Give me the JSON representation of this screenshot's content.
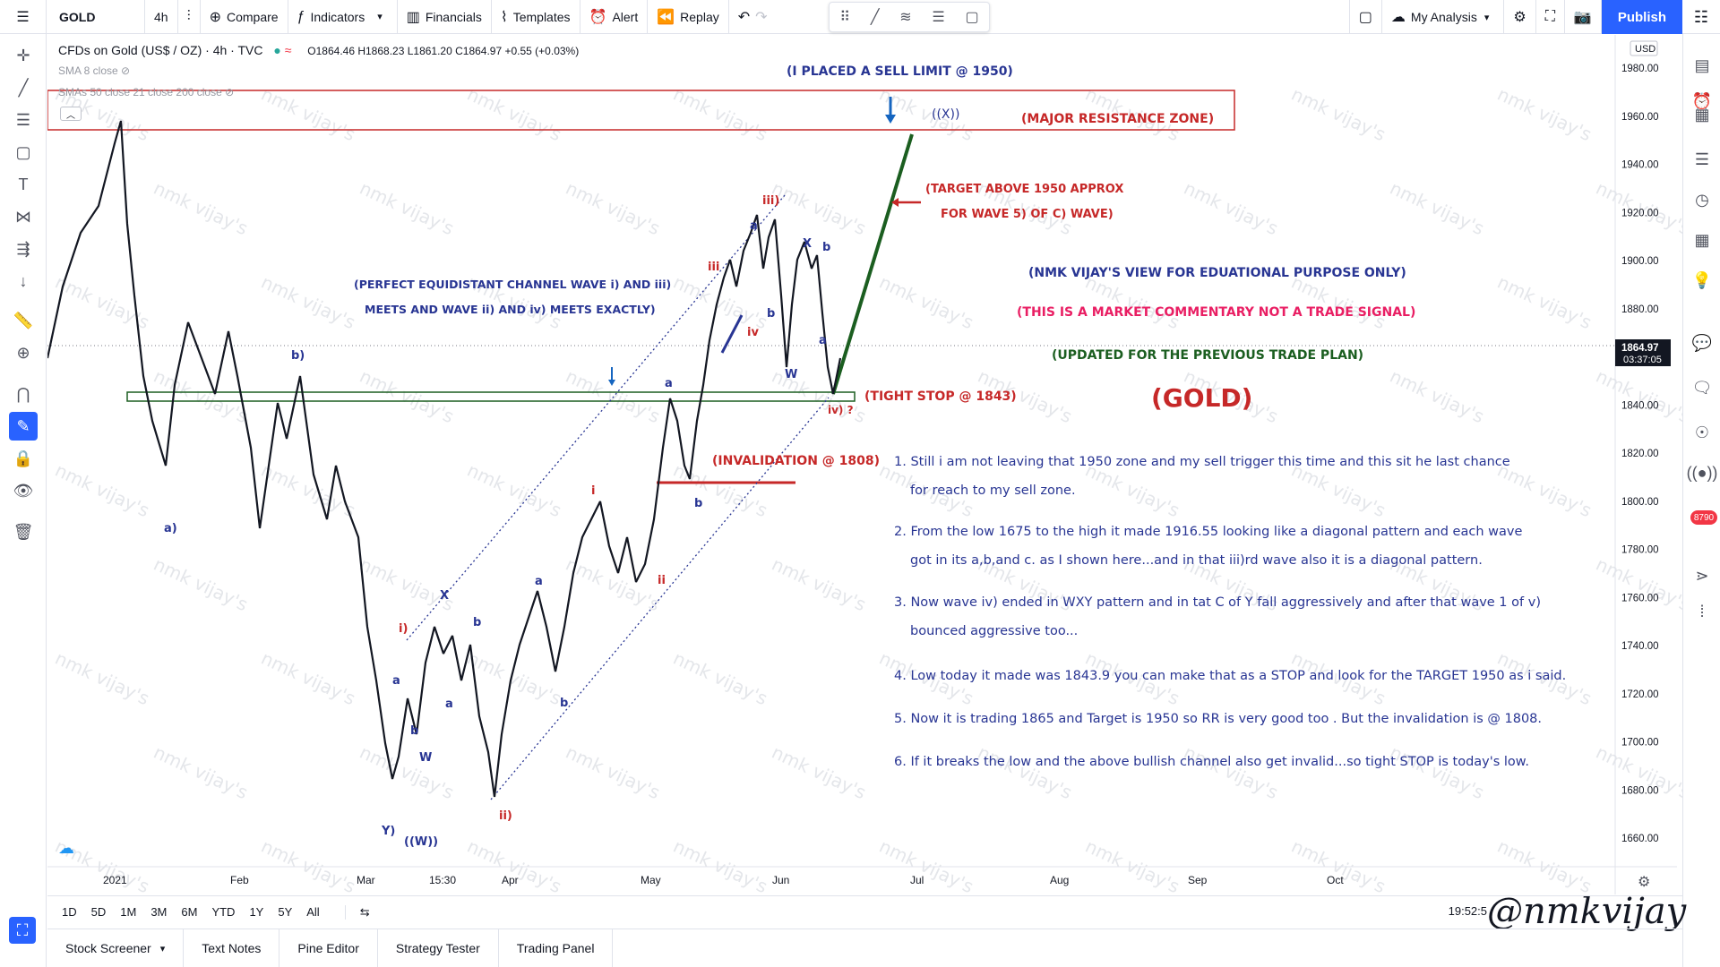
{
  "topbar": {
    "symbol": "GOLD",
    "interval": "4h",
    "compare": "Compare",
    "indicators": "Indicators",
    "financials": "Financials",
    "templates": "Templates",
    "alert": "Alert",
    "replay": "Replay",
    "my_analysis": "My Analysis",
    "publish": "Publish"
  },
  "legend": {
    "instrument": "CFDs on Gold (US$ / OZ) · 4h · TVC",
    "ohlc": "O1864.46 H1868.23 L1861.20 C1864.97 +0.55 (+0.03%)",
    "sma1": "SMA 8 close",
    "sma2": "SMAs 50 close 21 close 200 close"
  },
  "price_axis": {
    "currency": "USD",
    "ticks": [
      "1980.00",
      "1960.00",
      "1940.00",
      "1920.00",
      "1900.00",
      "1880.00",
      "1860.00",
      "1840.00",
      "1820.00",
      "1800.00",
      "1780.00",
      "1760.00",
      "1740.00",
      "1720.00",
      "1700.00",
      "1680.00",
      "1660.00"
    ],
    "current_price": "1864.97",
    "countdown": "03:37:05"
  },
  "time_axis": [
    "2021",
    "Feb",
    "Mar",
    "15:30",
    "Apr",
    "May",
    "Jun",
    "Jul",
    "Aug",
    "Sep",
    "Oct"
  ],
  "annotations": {
    "sell_limit": "(I PLACED A SELL LIMIT @ 1950)",
    "xx": "((X))",
    "resistance": "(MAJOR RESISTANCE ZONE)",
    "target1": "(TARGET ABOVE 1950 APPROX",
    "target2": "FOR WAVE 5) OF C) WAVE)",
    "channel1": "(PERFECT EQUIDISTANT CHANNEL WAVE i) AND iii)",
    "channel2": "MEETS AND WAVE ii) AND iv) MEETS EXACTLY)",
    "view": "(NMK VIJAY'S VIEW FOR EDUATIONAL PURPOSE ONLY)",
    "disclaimer": "(THIS IS A MARKET COMMENTARY NOT A TRADE SIGNAL)",
    "updated": "(UPDATED FOR THE PREVIOUS TRADE PLAN)",
    "gold": "(GOLD)",
    "tight_stop": "(TIGHT STOP @ 1843)",
    "invalidation": "(INVALIDATION @ 1808)",
    "iv_q": "iv) ?"
  },
  "notes": [
    {
      "l1": "1. Still i am not leaving that 1950 zone and my sell trigger this time and this sit he last chance",
      "l2": "for reach to my sell zone."
    },
    {
      "l1": "2. From the low 1675 to the high it made 1916.55 looking like a diagonal pattern and each wave",
      "l2": "got in its a,b,and c. as I shown here...and in that iii)rd wave also it is a diagonal pattern."
    },
    {
      "l1": "3. Now wave iv) ended in WXY pattern and in tat C of Y fall aggressively and after that wave 1 of v)",
      "l2": "bounced aggressive too..."
    },
    {
      "l1": "4. Low today it made was 1843.9 you can make that as a STOP and look for the TARGET 1950 as i said.",
      "l2": ""
    },
    {
      "l1": "5. Now it is trading 1865 and Target is 1950  so RR is very good too . But the invalidation is @ 1808.",
      "l2": ""
    },
    {
      "l1": "6. If it breaks the low and the above bullish channel also get invalid...so tight STOP is today's low.",
      "l2": ""
    }
  ],
  "wave_labels": {
    "a_": "a)",
    "b_": "b)",
    "x1": "X",
    "b1": "b",
    "a1": "a",
    "a2": "a",
    "b2": "b",
    "i_": "i)",
    "ii_": "ii)",
    "y_": "Y)",
    "w1": "W",
    "ww": "((W))",
    "b3": "b",
    "a3": "a",
    "i2": "i",
    "ii2": "ii",
    "b4": "b",
    "a4": "a",
    "iii2": "iii",
    "iv2": "iv",
    "a5": "a",
    "iii_": "iii)",
    "b5": "b",
    "w2": "W",
    "x2": "X",
    "b6": "b",
    "a6": "a"
  },
  "rangebar": {
    "ranges": [
      "1D",
      "5D",
      "1M",
      "3M",
      "6M",
      "YTD",
      "1Y",
      "5Y",
      "All"
    ],
    "clock": "19:52:5"
  },
  "bottom_tabs": [
    "Stock Screener",
    "Text Notes",
    "Pine Editor",
    "Strategy Tester",
    "Trading Panel"
  ],
  "watermark": "nmk vijay's",
  "signature": "@nmkvijay",
  "right_badge": "8790",
  "colors": {
    "accent": "#2962ff",
    "resistance": "#c62828",
    "green": "#1b5e20",
    "blue_text": "#283593",
    "magenta": "#e91e63"
  }
}
